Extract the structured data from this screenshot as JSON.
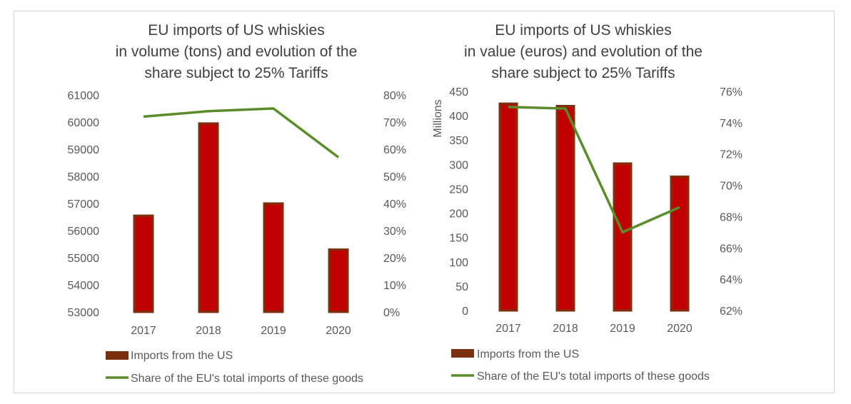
{
  "colors": {
    "bar": "#C00000",
    "bar_border": "#7B3010",
    "line": "#5B8C2A",
    "legend_bar": "#7B3010",
    "text": "#595959",
    "title": "#404040"
  },
  "chart_data": [
    {
      "type": "bar",
      "title_lines": [
        "EU imports of US whiskies",
        "in volume (tons) and evolution of the",
        "share subject to 25% Tariffs"
      ],
      "categories": [
        "2017",
        "2018",
        "2019",
        "2020"
      ],
      "ylabel": "",
      "ylim": [
        53000,
        61000
      ],
      "y2lim": [
        0,
        0.8
      ],
      "y_ticks": [
        "61000",
        "60000",
        "59000",
        "58000",
        "57000",
        "56000",
        "55000",
        "54000",
        "53000"
      ],
      "y2_ticks": [
        "80%",
        "70%",
        "60%",
        "50%",
        "40%",
        "30%",
        "20%",
        "10%",
        "0%"
      ],
      "series": [
        {
          "name": "Imports from the US",
          "kind": "bar",
          "axis": "left",
          "values": [
            56550,
            59950,
            57000,
            55300
          ]
        },
        {
          "name": "Share of the EU's total imports of these goods",
          "kind": "line",
          "axis": "right",
          "values": [
            0.72,
            0.74,
            0.75,
            0.57
          ]
        }
      ],
      "legend": [
        "Imports from the US",
        "Share of the EU's total imports of these goods"
      ]
    },
    {
      "type": "bar",
      "title_lines": [
        "EU imports of US whiskies",
        "in value (euros) and evolution of the",
        "share subject to 25% Tariffs"
      ],
      "categories": [
        "2017",
        "2018",
        "2019",
        "2020"
      ],
      "ylabel": "Millions",
      "ylim": [
        0,
        450
      ],
      "y2lim": [
        0.62,
        0.76
      ],
      "y_ticks": [
        "450",
        "400",
        "350",
        "300",
        "250",
        "200",
        "150",
        "100",
        "50",
        "0"
      ],
      "y2_ticks": [
        "76%",
        "74%",
        "72%",
        "70%",
        "68%",
        "66%",
        "64%",
        "62%"
      ],
      "series": [
        {
          "name": "Imports from the US",
          "kind": "bar",
          "axis": "left",
          "values": [
            425,
            420,
            302,
            275
          ]
        },
        {
          "name": "Share of the EU's total imports of these goods",
          "kind": "line",
          "axis": "right",
          "values": [
            0.75,
            0.749,
            0.67,
            0.686
          ]
        }
      ],
      "legend": [
        "Imports from the US",
        "Share of the EU's total imports of these goods"
      ]
    }
  ]
}
